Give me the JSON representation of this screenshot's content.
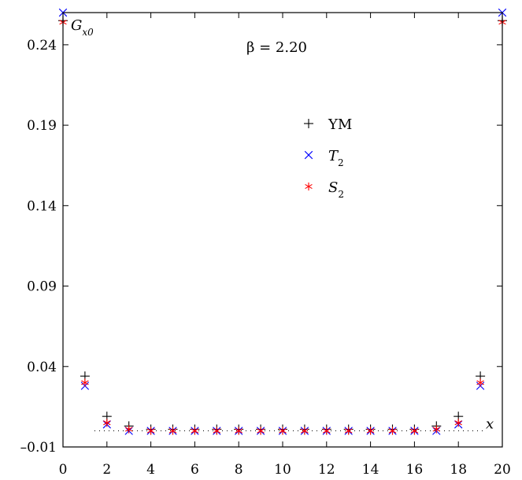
{
  "chart_data": {
    "type": "scatter",
    "xlim": [
      0,
      20
    ],
    "ylim": [
      -0.01,
      0.26
    ],
    "x_ticks": [
      "0",
      "2",
      "4",
      "6",
      "8",
      "10",
      "12",
      "14",
      "16",
      "18",
      "20"
    ],
    "y_ticks": [
      "0.24",
      "0.19",
      "0.14",
      "0.09",
      "0.04",
      "–0.01"
    ],
    "y_tick_values": [
      0.24,
      0.19,
      0.14,
      0.09,
      0.04,
      -0.01
    ],
    "x_tick_values": [
      0,
      2,
      4,
      6,
      8,
      10,
      12,
      14,
      16,
      18,
      20
    ],
    "ylabel": "G",
    "ylabel_sub": "x0",
    "xlabel": "x",
    "annotation": "β = 2.20",
    "zero_line": true,
    "grid": false,
    "legend_position": "center-right",
    "series": [
      {
        "name": "YM",
        "marker": "plus",
        "color": "#000000",
        "points": [
          [
            0,
            0.255
          ],
          [
            1,
            0.034
          ],
          [
            2,
            0.009
          ],
          [
            3,
            0.003
          ],
          [
            4,
            0.001
          ],
          [
            5,
            0.001
          ],
          [
            6,
            0.001
          ],
          [
            7,
            0.001
          ],
          [
            8,
            0.001
          ],
          [
            9,
            0.001
          ],
          [
            10,
            0.001
          ],
          [
            11,
            0.001
          ],
          [
            12,
            0.001
          ],
          [
            13,
            0.001
          ],
          [
            14,
            0.001
          ],
          [
            15,
            0.001
          ],
          [
            16,
            0.001
          ],
          [
            17,
            0.003
          ],
          [
            18,
            0.009
          ],
          [
            19,
            0.034
          ],
          [
            20,
            0.255
          ]
        ]
      },
      {
        "name": "T",
        "name_sub": "2",
        "marker": "cross",
        "color": "#0000ff",
        "points": [
          [
            0,
            0.26
          ],
          [
            1,
            0.028
          ],
          [
            2,
            0.004
          ],
          [
            3,
            0.0
          ],
          [
            4,
            0.0
          ],
          [
            5,
            0.0
          ],
          [
            6,
            0.0
          ],
          [
            7,
            0.0
          ],
          [
            8,
            0.0
          ],
          [
            9,
            0.0
          ],
          [
            10,
            0.0
          ],
          [
            11,
            0.0
          ],
          [
            12,
            0.0
          ],
          [
            13,
            0.0
          ],
          [
            14,
            0.0
          ],
          [
            15,
            0.0
          ],
          [
            16,
            0.0
          ],
          [
            17,
            0.0
          ],
          [
            18,
            0.004
          ],
          [
            19,
            0.028
          ],
          [
            20,
            0.26
          ]
        ]
      },
      {
        "name": "S",
        "name_sub": "2",
        "marker": "asterisk",
        "color": "#ff0000",
        "points": [
          [
            0,
            0.254
          ],
          [
            1,
            0.03
          ],
          [
            2,
            0.005
          ],
          [
            3,
            0.001
          ],
          [
            4,
            0.0
          ],
          [
            5,
            0.0
          ],
          [
            6,
            0.0
          ],
          [
            7,
            0.0
          ],
          [
            8,
            0.0
          ],
          [
            9,
            0.0
          ],
          [
            10,
            0.0
          ],
          [
            11,
            0.0
          ],
          [
            12,
            0.0
          ],
          [
            13,
            0.0
          ],
          [
            14,
            0.0
          ],
          [
            15,
            0.0
          ],
          [
            16,
            0.0
          ],
          [
            17,
            0.001
          ],
          [
            18,
            0.005
          ],
          [
            19,
            0.03
          ],
          [
            20,
            0.254
          ]
        ]
      }
    ]
  }
}
